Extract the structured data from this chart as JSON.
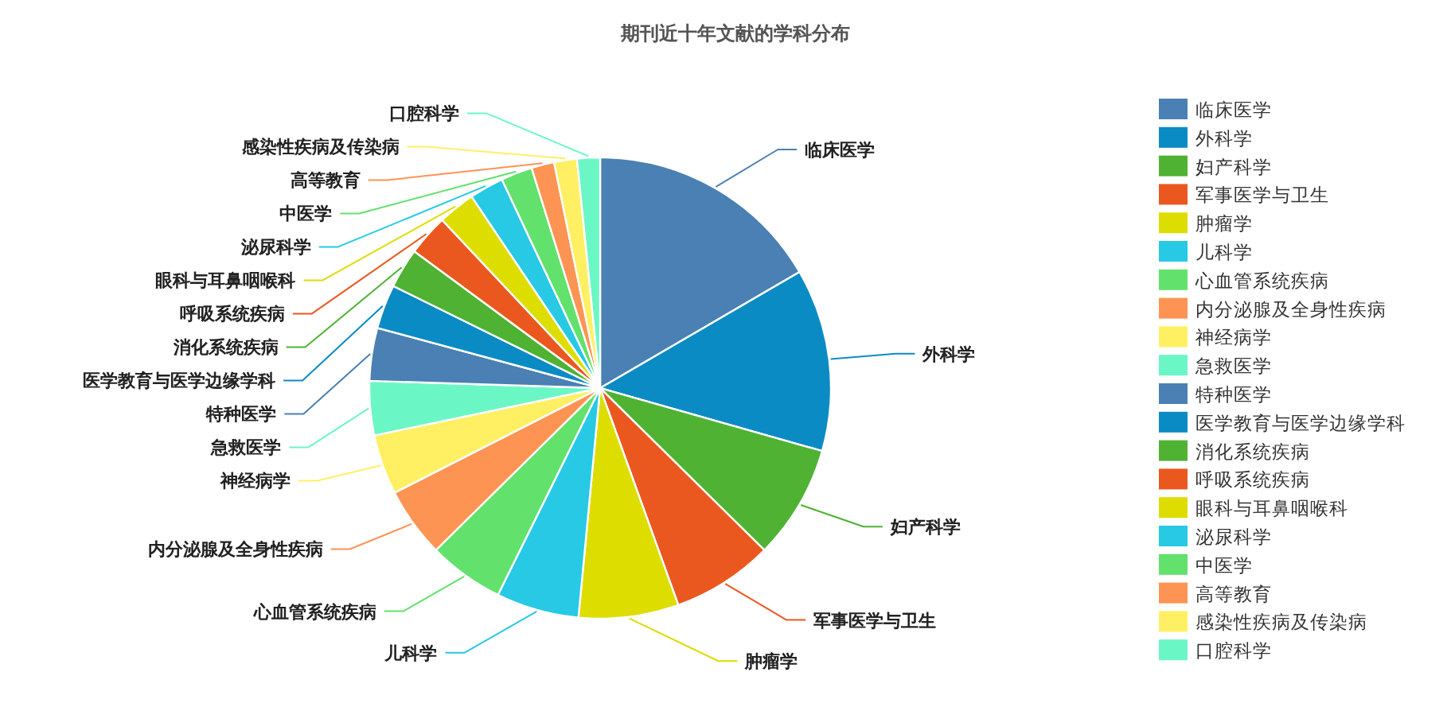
{
  "chart_data": {
    "type": "pie",
    "title": "期刊近十年文献的学科分布",
    "categories": [
      "临床医学",
      "外科学",
      "妇产科学",
      "军事医学与卫生",
      "肿瘤学",
      "儿科学",
      "心血管系统疾病",
      "内分泌腺及全身性疾病",
      "神经病学",
      "急救医学",
      "特种医学",
      "医学教育与医学边缘学科",
      "消化系统疾病",
      "呼吸系统疾病",
      "眼科与耳鼻咽喉科",
      "泌尿科学",
      "中医学",
      "高等教育",
      "感染性疾病及传染病",
      "口腔科学"
    ],
    "values": [
      16.6,
      12.8,
      8.0,
      7.1,
      7.0,
      5.8,
      5.3,
      4.9,
      4.2,
      3.8,
      3.7,
      3.1,
      2.8,
      2.9,
      2.6,
      2.4,
      2.2,
      1.6,
      1.6,
      1.6
    ],
    "colors": [
      "#4a80b3",
      "#0b8bc4",
      "#4fb233",
      "#eb581f",
      "#dddd00",
      "#27c9e4",
      "#62e16d",
      "#fd9454",
      "#fff063",
      "#6bf7c5",
      "#4a80b3",
      "#0b8bc4",
      "#4fb233",
      "#eb581f",
      "#dddd00",
      "#27c9e4",
      "#62e16d",
      "#fd9454",
      "#fff063",
      "#6bf7c5"
    ],
    "legend": "right"
  }
}
